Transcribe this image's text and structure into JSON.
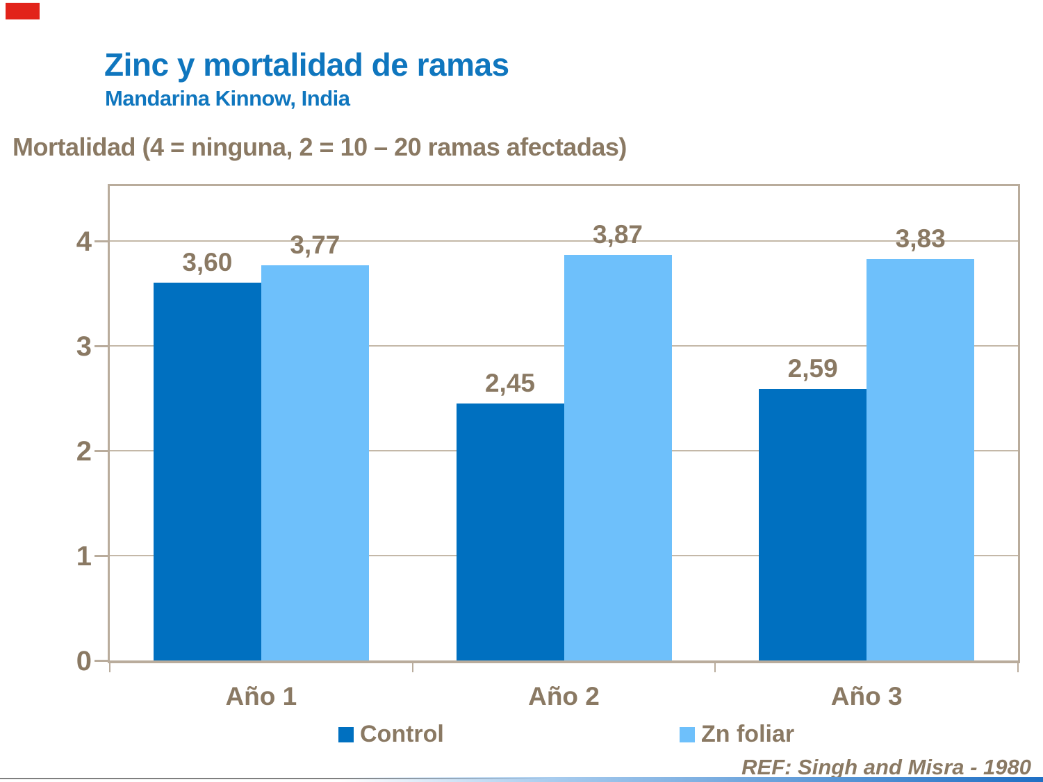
{
  "slide": {
    "title": "Zinc y mortalidad de ramas",
    "subtitle": "Mandarina Kinnow, India",
    "axis_note": "Mortalidad (4 = ninguna, 2 = 10 – 20 ramas afectadas)",
    "reference": "REF: Singh and Misra - 1980"
  },
  "colors": {
    "title_blue": "#0F76BE",
    "control_blue": "#0070C0",
    "zn_light_blue": "#6EC0FB",
    "text_brown": "#8A7963",
    "frame_tan": "#B9AC9C",
    "gridline_tan": "#C4B8A8",
    "bottom_line_gray": "#7F7F7F",
    "accent_red": "#E2231A"
  },
  "chart_data": {
    "type": "bar",
    "title": "Zinc y mortalidad de ramas",
    "subtitle": "Mandarina Kinnow, India",
    "ylabel": "Mortalidad (4 = ninguna, 2 = 10 – 20 ramas afectadas)",
    "categories": [
      "Año 1",
      "Año 2",
      "Año 3"
    ],
    "series": [
      {
        "name": "Control",
        "color_key": "control_blue",
        "values": [
          3.6,
          2.45,
          2.59
        ],
        "value_labels": [
          "3,60",
          "2,45",
          "2,59"
        ]
      },
      {
        "name": "Zn foliar",
        "color_key": "zn_light_blue",
        "values": [
          3.77,
          3.87,
          3.83
        ],
        "value_labels": [
          "3,77",
          "3,87",
          "3,83"
        ]
      }
    ],
    "yticks": [
      0,
      1,
      2,
      3,
      4
    ],
    "ytick_labels": [
      "0",
      "1",
      "2",
      "3",
      "4"
    ],
    "ylim": [
      0,
      4.54
    ],
    "grid": true,
    "legend_position": "bottom"
  },
  "legend": {
    "items": [
      {
        "label": "Control"
      },
      {
        "label": "Zn foliar"
      }
    ]
  }
}
